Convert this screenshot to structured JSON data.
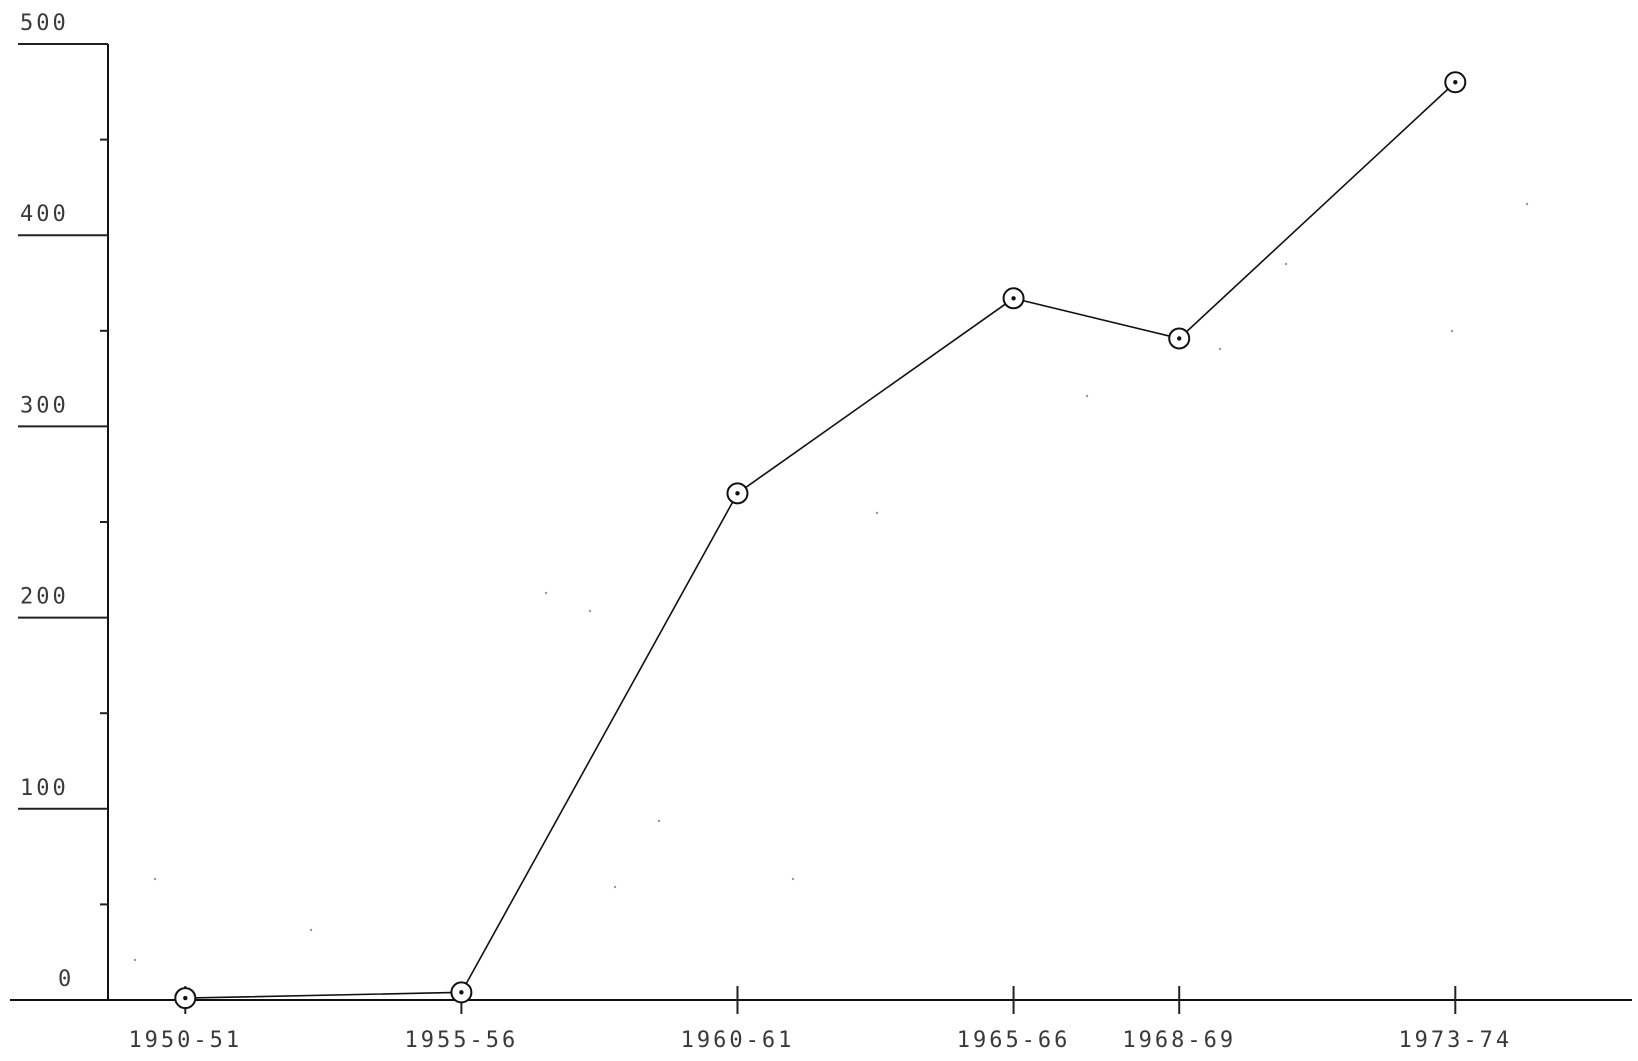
{
  "chart_data": {
    "type": "line",
    "title": "",
    "xlabel": "",
    "ylabel": "",
    "categories": [
      "1950-51",
      "1955-56",
      "1960-61",
      "1965-66",
      "1968-69",
      "1973-74"
    ],
    "x": [
      1950.5,
      1955.5,
      1960.5,
      1965.5,
      1968.5,
      1973.5
    ],
    "series": [
      {
        "values": [
          1,
          4,
          265,
          367,
          346,
          480
        ]
      }
    ],
    "ylim": [
      0,
      500
    ],
    "yticks": [
      0,
      100,
      200,
      300,
      400,
      500
    ],
    "ytick_labels": [
      "0",
      "100",
      "200",
      "300",
      "400",
      "500"
    ],
    "grid": false,
    "legend": "none",
    "marker": "circle"
  }
}
